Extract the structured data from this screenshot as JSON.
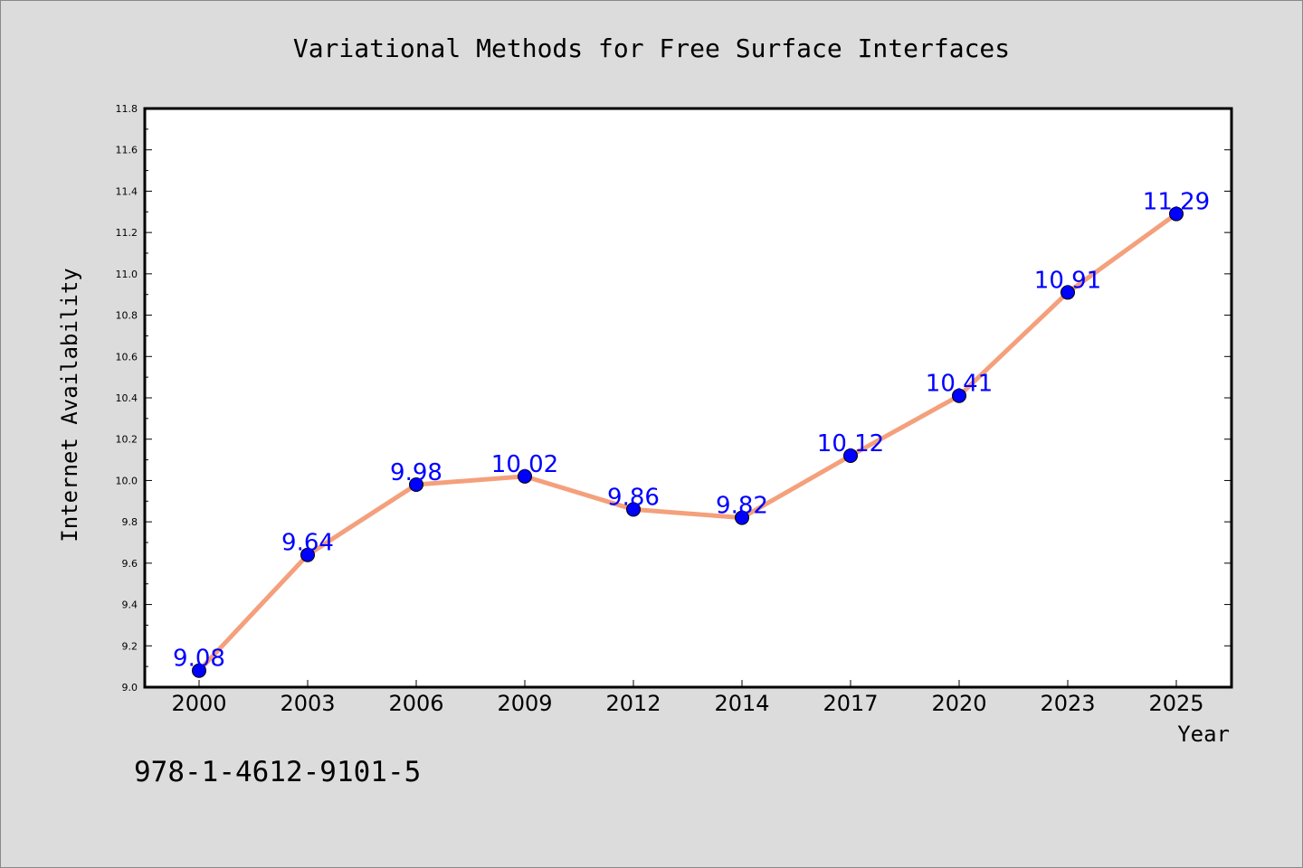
{
  "chart_data": {
    "type": "line",
    "title": "Variational Methods for Free Surface Interfaces",
    "xlabel": "Year",
    "ylabel": "Internet Availability",
    "categories": [
      "2000",
      "2003",
      "2006",
      "2009",
      "2012",
      "2014",
      "2017",
      "2020",
      "2023",
      "2025"
    ],
    "series": [
      {
        "values": [
          9.08,
          9.64,
          9.98,
          10.02,
          9.86,
          9.82,
          10.12,
          10.41,
          10.91,
          11.29
        ]
      }
    ],
    "data_labels": [
      "9.08",
      "9.64",
      "9.98",
      "10.02",
      "9.86",
      "9.82",
      "10.12",
      "10.41",
      "10.91",
      "11.29"
    ],
    "ylim": [
      9.0,
      11.8
    ],
    "yticks": [
      "9.0",
      "9.2",
      "9.4",
      "9.6",
      "9.8",
      "10.0",
      "10.2",
      "10.4",
      "10.6",
      "10.8",
      "11.0",
      "11.2",
      "11.4",
      "11.6",
      "11.8"
    ],
    "grid": false,
    "legend": "none",
    "annotation": "978-1-4612-9101-5",
    "colors": {
      "line": "#f4a07c",
      "marker": "#0000ff",
      "data_label": "#0000ff",
      "background": "#dcdcdc",
      "plot_background": "#ffffff"
    }
  }
}
